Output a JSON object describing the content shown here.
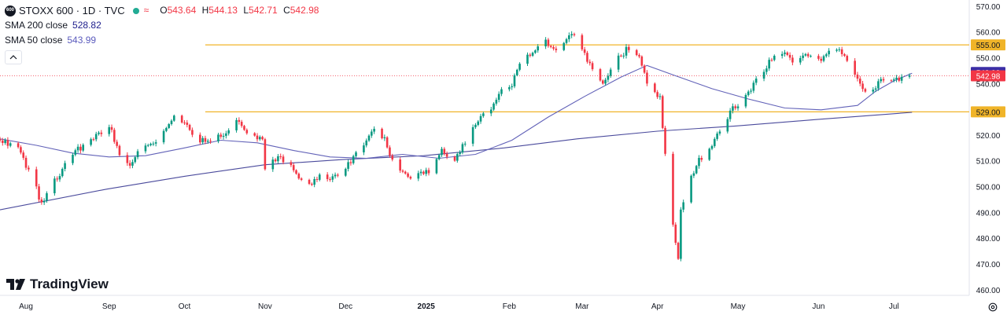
{
  "header": {
    "symbol_badge": "600",
    "title": "STOXX 600 · 1D · TVC",
    "status_dot_color": "#22ab94",
    "ohlc": {
      "o_label": "O",
      "o": "543.64",
      "h_label": "H",
      "h": "544.13",
      "l_label": "L",
      "l": "542.71",
      "c_label": "C",
      "c": "542.98"
    },
    "sma200": {
      "label": "SMA 200 close",
      "value": "528.82",
      "color": "#1e1e8c"
    },
    "sma50": {
      "label": "SMA 50 close",
      "value": "543.99",
      "color": "#5b5bbd"
    }
  },
  "logo_text": "TradingView",
  "chart_data": {
    "type": "candlestick",
    "symbol": "STOXX 600",
    "interval": "1D",
    "y_axis_ticks": [
      460,
      470,
      480,
      490,
      500,
      510,
      520,
      530,
      540,
      550,
      560,
      570
    ],
    "y_axis_tick_labels": [
      "460.00",
      "470.00",
      "480.00",
      "490.00",
      "500.00",
      "510.00",
      "520.00",
      "530.00",
      "540.00",
      "550.00",
      "560.00",
      "570.00"
    ],
    "ylim": [
      457.8,
      572.4
    ],
    "x_axis_labels": [
      {
        "label": "Aug",
        "date": "2024-08-01"
      },
      {
        "label": "Sep",
        "date": "2024-09-02"
      },
      {
        "label": "Oct",
        "date": "2024-10-01"
      },
      {
        "label": "Nov",
        "date": "2024-11-01"
      },
      {
        "label": "Dec",
        "date": "2024-12-02"
      },
      {
        "label": "2025",
        "date": "2025-01-02"
      },
      {
        "label": "Feb",
        "date": "2025-02-03"
      },
      {
        "label": "Mar",
        "date": "2025-03-03"
      },
      {
        "label": "Apr",
        "date": "2025-04-01"
      },
      {
        "label": "May",
        "date": "2025-05-02"
      },
      {
        "label": "Jun",
        "date": "2025-06-02"
      },
      {
        "label": "Jul",
        "date": "2025-07-01"
      }
    ],
    "xlim": [
      "2024-07-22",
      "2025-07-30"
    ],
    "horizontal_lines": [
      {
        "value": 555.0,
        "label": "555.00",
        "color": "#f0b429",
        "start_date": "2024-10-09"
      },
      {
        "value": 529.0,
        "label": "529.00",
        "color": "#f0b429",
        "start_date": "2024-10-09"
      }
    ],
    "price_tags": [
      {
        "value": 544.3,
        "label": "543.99",
        "color": "#3b2ea6"
      },
      {
        "value": 542.98,
        "label": "542.98",
        "color": "#f23645"
      }
    ],
    "last_price": 542.98,
    "close_series": [
      [
        "2024-07-22",
        518.5
      ],
      [
        "2024-07-29",
        515.0
      ],
      [
        "2024-08-05",
        499.0
      ],
      [
        "2024-08-07",
        493.0
      ],
      [
        "2024-08-09",
        498.0
      ],
      [
        "2024-08-14",
        505.0
      ],
      [
        "2024-08-19",
        513.0
      ],
      [
        "2024-08-26",
        518.0
      ],
      [
        "2024-09-02",
        524.0
      ],
      [
        "2024-09-06",
        512.0
      ],
      [
        "2024-09-09",
        508.0
      ],
      [
        "2024-09-13",
        513.0
      ],
      [
        "2024-09-18",
        516.5
      ],
      [
        "2024-09-23",
        521.0
      ],
      [
        "2024-09-27",
        527.5
      ],
      [
        "2024-10-01",
        524.0
      ],
      [
        "2024-10-07",
        518.0
      ],
      [
        "2024-10-11",
        518.5
      ],
      [
        "2024-10-15",
        520.0
      ],
      [
        "2024-10-21",
        525.0
      ],
      [
        "2024-10-25",
        521.0
      ],
      [
        "2024-10-31",
        518.5
      ],
      [
        "2024-11-01",
        507.0
      ],
      [
        "2024-11-06",
        511.0
      ],
      [
        "2024-11-11",
        509.0
      ],
      [
        "2024-11-14",
        503.0
      ],
      [
        "2024-11-19",
        500.5
      ],
      [
        "2024-11-22",
        505.0
      ],
      [
        "2024-11-27",
        503.0
      ],
      [
        "2024-12-02",
        507.0
      ],
      [
        "2024-12-06",
        513.0
      ],
      [
        "2024-12-10",
        518.5
      ],
      [
        "2024-12-13",
        521.5
      ],
      [
        "2024-12-17",
        518.0
      ],
      [
        "2024-12-20",
        510.0
      ],
      [
        "2024-12-27",
        503.0
      ],
      [
        "2025-01-03",
        506.0
      ],
      [
        "2025-01-08",
        514.0
      ],
      [
        "2025-01-13",
        510.0
      ],
      [
        "2025-01-16",
        516.0
      ],
      [
        "2025-01-20",
        522.0
      ],
      [
        "2025-01-24",
        528.0
      ],
      [
        "2025-01-29",
        533.0
      ],
      [
        "2025-01-31",
        537.0
      ],
      [
        "2025-02-04",
        540.0
      ],
      [
        "2025-02-07",
        548.0
      ],
      [
        "2025-02-12",
        552.0
      ],
      [
        "2025-02-17",
        556.0
      ],
      [
        "2025-02-21",
        552.0
      ],
      [
        "2025-02-25",
        557.0
      ],
      [
        "2025-03-01",
        559.0
      ],
      [
        "2025-03-04",
        551.0
      ],
      [
        "2025-03-07",
        545.0
      ],
      [
        "2025-03-11",
        540.0
      ],
      [
        "2025-03-14",
        546.0
      ],
      [
        "2025-03-18",
        551.0
      ],
      [
        "2025-03-21",
        554.0
      ],
      [
        "2025-03-25",
        550.0
      ],
      [
        "2025-03-28",
        541.0
      ],
      [
        "2025-04-02",
        534.0
      ],
      [
        "2025-04-04",
        512.0
      ],
      [
        "2025-04-07",
        486.0
      ],
      [
        "2025-04-09",
        472.0
      ],
      [
        "2025-04-10",
        492.0
      ],
      [
        "2025-04-14",
        504.0
      ],
      [
        "2025-04-17",
        510.0
      ],
      [
        "2025-04-22",
        516.0
      ],
      [
        "2025-04-25",
        522.0
      ],
      [
        "2025-04-30",
        530.0
      ],
      [
        "2025-05-05",
        535.0
      ],
      [
        "2025-05-09",
        541.0
      ],
      [
        "2025-05-13",
        547.0
      ],
      [
        "2025-05-16",
        551.0
      ],
      [
        "2025-05-20",
        553.0
      ],
      [
        "2025-05-23",
        547.0
      ],
      [
        "2025-05-27",
        552.0
      ],
      [
        "2025-06-02",
        549.0
      ],
      [
        "2025-06-05",
        551.0
      ],
      [
        "2025-06-10",
        554.0
      ],
      [
        "2025-06-13",
        549.0
      ],
      [
        "2025-06-17",
        543.0
      ],
      [
        "2025-06-20",
        537.0
      ],
      [
        "2025-06-24",
        539.0
      ],
      [
        "2025-06-27",
        542.0
      ],
      [
        "2025-07-01",
        541.0
      ],
      [
        "2025-07-04",
        541.5
      ],
      [
        "2025-07-08",
        543.0
      ]
    ],
    "sma50_series": [
      [
        "2024-07-22",
        518.5
      ],
      [
        "2024-08-05",
        516.0
      ],
      [
        "2024-08-19",
        513.0
      ],
      [
        "2024-09-02",
        511.5
      ],
      [
        "2024-09-16",
        512.0
      ],
      [
        "2024-10-01",
        515.0
      ],
      [
        "2024-10-15",
        518.0
      ],
      [
        "2024-10-29",
        517.0
      ],
      [
        "2024-11-12",
        514.0
      ],
      [
        "2024-11-26",
        511.5
      ],
      [
        "2024-12-10",
        511.0
      ],
      [
        "2024-12-24",
        512.5
      ],
      [
        "2025-01-07",
        511.0
      ],
      [
        "2025-01-21",
        512.5
      ],
      [
        "2025-02-04",
        518.0
      ],
      [
        "2025-02-18",
        527.0
      ],
      [
        "2025-03-04",
        535.0
      ],
      [
        "2025-03-18",
        542.5
      ],
      [
        "2025-03-28",
        547.0
      ],
      [
        "2025-04-08",
        543.0
      ],
      [
        "2025-04-22",
        538.0
      ],
      [
        "2025-05-06",
        534.0
      ],
      [
        "2025-05-20",
        530.5
      ],
      [
        "2025-06-03",
        529.8
      ],
      [
        "2025-06-17",
        531.5
      ],
      [
        "2025-06-24",
        537.0
      ],
      [
        "2025-07-01",
        541.0
      ],
      [
        "2025-07-08",
        543.99
      ]
    ],
    "sma200_series": [
      [
        "2024-07-22",
        491.0
      ],
      [
        "2024-09-01",
        499.0
      ],
      [
        "2024-10-01",
        504.0
      ],
      [
        "2024-11-01",
        508.5
      ],
      [
        "2024-12-01",
        510.5
      ],
      [
        "2025-01-01",
        512.0
      ],
      [
        "2025-02-01",
        515.0
      ],
      [
        "2025-03-01",
        518.5
      ],
      [
        "2025-04-01",
        521.5
      ],
      [
        "2025-05-01",
        523.5
      ],
      [
        "2025-06-01",
        526.0
      ],
      [
        "2025-07-08",
        528.82
      ]
    ]
  }
}
